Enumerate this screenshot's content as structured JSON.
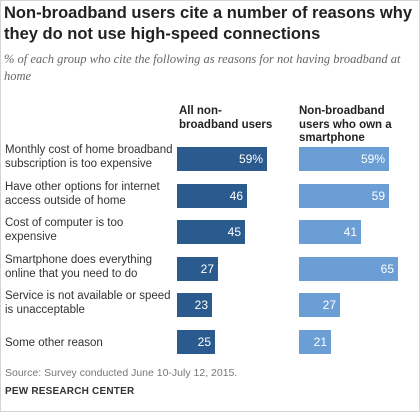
{
  "title": "Non-broadband users cite a number of reasons why they do not use high-speed connections",
  "subtitle": "% of each group who cite the following as reasons for not having broadband at home",
  "source": "Source: Survey conducted June 10-July 12, 2015.",
  "credit": "PEW RESEARCH CENTER",
  "colors": {
    "series1": "#2a5a8e",
    "series2": "#6a9ed5"
  },
  "chart_data": {
    "type": "bar",
    "orientation": "horizontal",
    "categories": [
      "Monthly cost of home broadband subscription is too expensive",
      "Have other options for internet access outside of home",
      "Cost of computer is too expensive",
      "Smartphone does everything online that you need to do",
      "Service is not available or speed is unacceptable",
      "Some other reason"
    ],
    "series": [
      {
        "name": "All non-broadband users",
        "values": [
          59,
          46,
          45,
          27,
          23,
          25
        ],
        "labels": [
          "59%",
          "46",
          "45",
          "27",
          "23",
          "25"
        ]
      },
      {
        "name": "Non-broadband users who own a smartphone",
        "values": [
          59,
          59,
          41,
          65,
          27,
          21
        ],
        "labels": [
          "59%",
          "59",
          "41",
          "65",
          "27",
          "21"
        ]
      }
    ],
    "unit": "%",
    "grid": false,
    "legend": "column headers"
  }
}
